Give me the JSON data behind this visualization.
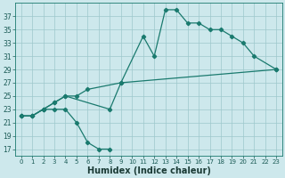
{
  "xlabel": "Humidex (Indice chaleur)",
  "bg_color": "#cde8ec",
  "grid_color": "#9dc8cc",
  "line_color": "#1a7a6e",
  "xlim": [
    -0.5,
    23.5
  ],
  "ylim": [
    16,
    39
  ],
  "xticks": [
    0,
    1,
    2,
    3,
    4,
    5,
    6,
    7,
    8,
    9,
    10,
    11,
    12,
    13,
    14,
    15,
    16,
    17,
    18,
    19,
    20,
    21,
    22,
    23
  ],
  "yticks": [
    17,
    19,
    21,
    23,
    25,
    27,
    29,
    31,
    33,
    35,
    37
  ],
  "line_dip": [
    [
      0,
      22
    ],
    [
      1,
      22
    ],
    [
      2,
      23
    ],
    [
      3,
      23
    ],
    [
      4,
      23
    ],
    [
      5,
      21
    ],
    [
      6,
      18
    ],
    [
      7,
      17
    ],
    [
      8,
      17
    ]
  ],
  "line_peak": [
    [
      0,
      22
    ],
    [
      1,
      22
    ],
    [
      2,
      23
    ],
    [
      3,
      24
    ],
    [
      4,
      25
    ],
    [
      8,
      23
    ],
    [
      9,
      27
    ],
    [
      11,
      34
    ],
    [
      12,
      31
    ],
    [
      13,
      38
    ],
    [
      14,
      38
    ],
    [
      15,
      36
    ],
    [
      16,
      36
    ],
    [
      17,
      35
    ],
    [
      18,
      35
    ],
    [
      19,
      34
    ],
    [
      20,
      33
    ],
    [
      21,
      31
    ],
    [
      23,
      29
    ]
  ],
  "line_flat": [
    [
      0,
      22
    ],
    [
      1,
      22
    ],
    [
      2,
      23
    ],
    [
      3,
      24
    ],
    [
      4,
      25
    ],
    [
      5,
      25
    ],
    [
      6,
      26
    ],
    [
      9,
      27
    ],
    [
      23,
      29
    ]
  ]
}
